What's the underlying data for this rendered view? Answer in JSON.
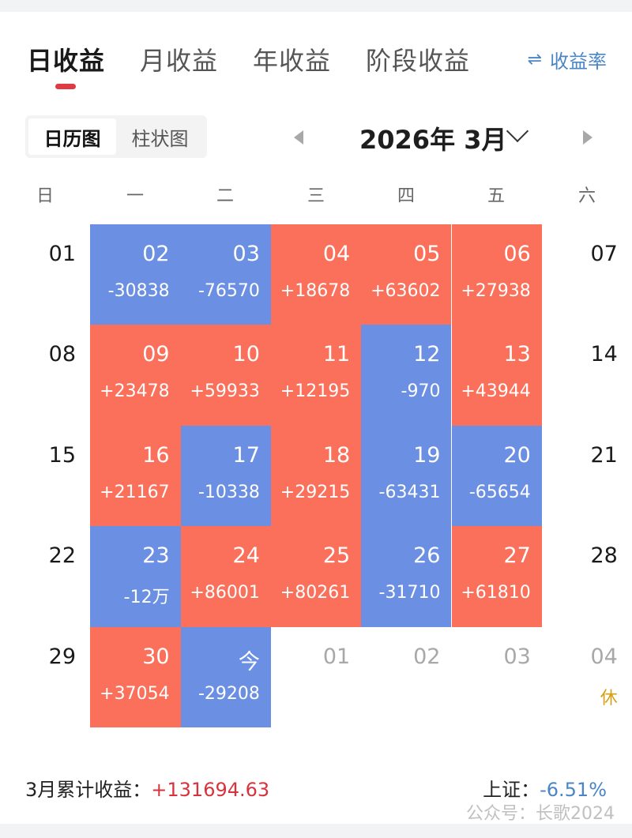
{
  "tabs": [
    {
      "label": "日收益",
      "active": true
    },
    {
      "label": "月收益",
      "active": false
    },
    {
      "label": "年收益",
      "active": false
    },
    {
      "label": "阶段收益",
      "active": false
    }
  ],
  "rate_toggle": {
    "icon": "⇌",
    "label": "收益率"
  },
  "view_switch": {
    "calendar": "日历图",
    "bar": "柱状图",
    "active": "calendar"
  },
  "month_nav": {
    "label": "2026年 3月",
    "prev_icon": "triangle-left",
    "next_icon": "triangle-right",
    "dropdown_icon": "chevron-down"
  },
  "weekdays": [
    "日",
    "一",
    "二",
    "三",
    "四",
    "五",
    "六"
  ],
  "colors": {
    "gain": "#fb705a",
    "loss": "#6b8fe3",
    "holiday": "#d4a017",
    "total_gain": "#d8333c",
    "index_loss": "#4a86c5"
  },
  "weeks": [
    [
      {
        "day": "01",
        "type": "weekend"
      },
      {
        "day": "02",
        "value": "-30838",
        "type": "down"
      },
      {
        "day": "03",
        "value": "-76570",
        "type": "down"
      },
      {
        "day": "04",
        "value": "+18678",
        "type": "up"
      },
      {
        "day": "05",
        "value": "+63602",
        "type": "up"
      },
      {
        "day": "06",
        "value": "+27938",
        "type": "up"
      },
      {
        "day": "07",
        "type": "weekend"
      }
    ],
    [
      {
        "day": "08",
        "type": "weekend"
      },
      {
        "day": "09",
        "value": "+23478",
        "type": "up"
      },
      {
        "day": "10",
        "value": "+59933",
        "type": "up"
      },
      {
        "day": "11",
        "value": "+12195",
        "type": "up"
      },
      {
        "day": "12",
        "value": "-970",
        "type": "down"
      },
      {
        "day": "13",
        "value": "+43944",
        "type": "up"
      },
      {
        "day": "14",
        "type": "weekend"
      }
    ],
    [
      {
        "day": "15",
        "type": "weekend"
      },
      {
        "day": "16",
        "value": "+21167",
        "type": "up"
      },
      {
        "day": "17",
        "value": "-10338",
        "type": "down"
      },
      {
        "day": "18",
        "value": "+29215",
        "type": "up"
      },
      {
        "day": "19",
        "value": "-63431",
        "type": "down"
      },
      {
        "day": "20",
        "value": "-65654",
        "type": "down"
      },
      {
        "day": "21",
        "type": "weekend"
      }
    ],
    [
      {
        "day": "22",
        "type": "weekend"
      },
      {
        "day": "23",
        "value": "-12万",
        "type": "down"
      },
      {
        "day": "24",
        "value": "+86001",
        "type": "up"
      },
      {
        "day": "25",
        "value": "+80261",
        "type": "up"
      },
      {
        "day": "26",
        "value": "-31710",
        "type": "down"
      },
      {
        "day": "27",
        "value": "+61810",
        "type": "up"
      },
      {
        "day": "28",
        "type": "weekend"
      }
    ],
    [
      {
        "day": "29",
        "type": "weekend"
      },
      {
        "day": "30",
        "value": "+37054",
        "type": "up"
      },
      {
        "day": "今",
        "value": "-29208",
        "type": "down"
      },
      {
        "day": "01",
        "type": "future"
      },
      {
        "day": "02",
        "type": "future"
      },
      {
        "day": "03",
        "type": "future"
      },
      {
        "day": "04",
        "value": "休",
        "type": "future holiday"
      }
    ]
  ],
  "summary": {
    "label": "3月累计收益：",
    "value": "+131694.63"
  },
  "index": {
    "label": "上证：",
    "value": "-6.51%"
  },
  "watermark": "公众号：长歌2024"
}
